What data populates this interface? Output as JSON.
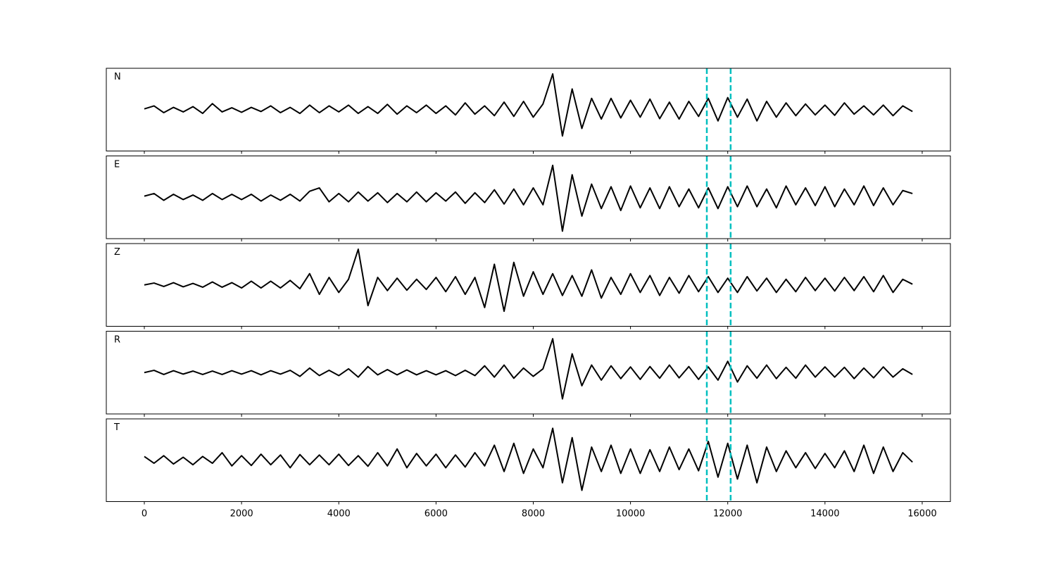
{
  "chart_data": {
    "type": "line",
    "x": [
      0,
      200,
      400,
      600,
      800,
      1000,
      1200,
      1400,
      1600,
      1800,
      2000,
      2200,
      2400,
      2600,
      2800,
      3000,
      3200,
      3400,
      3600,
      3800,
      4000,
      4200,
      4400,
      4600,
      4800,
      5000,
      5200,
      5400,
      5600,
      5800,
      6000,
      6200,
      6400,
      6600,
      6800,
      7000,
      7200,
      7400,
      7600,
      7800,
      8000,
      8200,
      8400,
      8600,
      8800,
      9000,
      9200,
      9400,
      9600,
      9800,
      10000,
      10200,
      10400,
      10600,
      10800,
      11000,
      11200,
      11400,
      11600,
      11800,
      12000,
      12200,
      12400,
      12600,
      12800,
      13000,
      13200,
      13400,
      13600,
      13800,
      14000,
      14200,
      14400,
      14600,
      14800,
      15000,
      15200,
      15400,
      15600,
      15800
    ],
    "xlim": [
      -782,
      16580
    ],
    "xticks": [
      0,
      2000,
      4000,
      6000,
      8000,
      10000,
      12000,
      14000,
      16000
    ],
    "ylim": [
      -1.1,
      1.1
    ],
    "color": "#000000",
    "markers": {
      "values": [
        11570,
        12060
      ],
      "color": "#00bfbf",
      "style": "dashed"
    },
    "series": [
      {
        "name": "N",
        "values": [
          0.02,
          0.1,
          -0.08,
          0.06,
          -0.06,
          0.08,
          -0.1,
          0.16,
          -0.06,
          0.05,
          -0.07,
          0.06,
          -0.05,
          0.1,
          -0.08,
          0.06,
          -0.1,
          0.12,
          -0.08,
          0.1,
          -0.06,
          0.12,
          -0.1,
          0.08,
          -0.1,
          0.14,
          -0.12,
          0.1,
          -0.08,
          0.12,
          -0.1,
          0.1,
          -0.14,
          0.18,
          -0.12,
          0.1,
          -0.16,
          0.2,
          -0.18,
          0.22,
          -0.2,
          0.15,
          0.95,
          -0.7,
          0.55,
          -0.5,
          0.3,
          -0.25,
          0.3,
          -0.22,
          0.25,
          -0.2,
          0.28,
          -0.24,
          0.2,
          -0.25,
          0.22,
          -0.18,
          0.3,
          -0.3,
          0.32,
          -0.2,
          0.28,
          -0.3,
          0.22,
          -0.2,
          0.18,
          -0.16,
          0.15,
          -0.14,
          0.12,
          -0.15,
          0.18,
          -0.12,
          0.1,
          -0.14,
          0.12,
          -0.16,
          0.1,
          -0.05
        ]
      },
      {
        "name": "E",
        "values": [
          0.03,
          0.1,
          -0.08,
          0.08,
          -0.06,
          0.06,
          -0.08,
          0.1,
          -0.06,
          0.08,
          -0.06,
          0.08,
          -0.1,
          0.06,
          -0.08,
          0.08,
          -0.1,
          0.16,
          0.25,
          -0.12,
          0.1,
          -0.12,
          0.14,
          -0.1,
          0.12,
          -0.14,
          0.1,
          -0.12,
          0.14,
          -0.12,
          0.12,
          -0.1,
          0.14,
          -0.16,
          0.12,
          -0.14,
          0.2,
          -0.18,
          0.22,
          -0.2,
          0.25,
          -0.2,
          0.85,
          -0.9,
          0.6,
          -0.5,
          0.35,
          -0.3,
          0.28,
          -0.35,
          0.3,
          -0.28,
          0.25,
          -0.3,
          0.28,
          -0.25,
          0.22,
          -0.28,
          0.25,
          -0.3,
          0.28,
          -0.25,
          0.3,
          -0.25,
          0.22,
          -0.28,
          0.3,
          -0.2,
          0.25,
          -0.22,
          0.28,
          -0.25,
          0.22,
          -0.2,
          0.3,
          -0.22,
          0.25,
          -0.2,
          0.18,
          0.1
        ]
      },
      {
        "name": "Z",
        "values": [
          0.0,
          0.05,
          -0.04,
          0.06,
          -0.05,
          0.04,
          -0.06,
          0.08,
          -0.06,
          0.06,
          -0.08,
          0.1,
          -0.08,
          0.1,
          -0.08,
          0.12,
          -0.1,
          0.3,
          -0.25,
          0.2,
          -0.2,
          0.15,
          0.95,
          -0.55,
          0.2,
          -0.15,
          0.18,
          -0.14,
          0.15,
          -0.12,
          0.2,
          -0.18,
          0.22,
          -0.25,
          0.2,
          -0.6,
          0.55,
          -0.7,
          0.6,
          -0.3,
          0.35,
          -0.25,
          0.3,
          -0.28,
          0.25,
          -0.3,
          0.4,
          -0.35,
          0.2,
          -0.25,
          0.3,
          -0.2,
          0.25,
          -0.28,
          0.2,
          -0.22,
          0.25,
          -0.18,
          0.22,
          -0.2,
          0.18,
          -0.2,
          0.22,
          -0.16,
          0.18,
          -0.2,
          0.15,
          -0.18,
          0.2,
          -0.15,
          0.18,
          -0.16,
          0.2,
          -0.15,
          0.22,
          -0.18,
          0.25,
          -0.2,
          0.15,
          0.02
        ]
      },
      {
        "name": "R",
        "values": [
          0.0,
          0.06,
          -0.05,
          0.05,
          -0.04,
          0.04,
          -0.05,
          0.04,
          -0.05,
          0.05,
          -0.04,
          0.05,
          -0.06,
          0.05,
          -0.04,
          0.06,
          -0.1,
          0.12,
          -0.08,
          0.06,
          -0.08,
          0.1,
          -0.12,
          0.16,
          -0.06,
          0.08,
          -0.06,
          0.07,
          -0.06,
          0.05,
          -0.06,
          0.05,
          -0.08,
          0.06,
          -0.08,
          0.18,
          -0.12,
          0.2,
          -0.15,
          0.12,
          -0.1,
          0.1,
          0.9,
          -0.7,
          0.5,
          -0.35,
          0.2,
          -0.2,
          0.18,
          -0.16,
          0.15,
          -0.18,
          0.16,
          -0.15,
          0.2,
          -0.14,
          0.16,
          -0.18,
          0.15,
          -0.2,
          0.3,
          -0.25,
          0.18,
          -0.15,
          0.2,
          -0.16,
          0.14,
          -0.15,
          0.2,
          -0.12,
          0.15,
          -0.12,
          0.14,
          -0.16,
          0.12,
          -0.14,
          0.15,
          -0.12,
          0.1,
          -0.05
        ]
      },
      {
        "name": "T",
        "values": [
          0.1,
          -0.08,
          0.12,
          -0.1,
          0.08,
          -0.12,
          0.1,
          -0.08,
          0.2,
          -0.15,
          0.12,
          -0.14,
          0.16,
          -0.12,
          0.14,
          -0.2,
          0.15,
          -0.12,
          0.14,
          -0.12,
          0.16,
          -0.14,
          0.12,
          -0.16,
          0.2,
          -0.15,
          0.3,
          -0.2,
          0.18,
          -0.15,
          0.16,
          -0.2,
          0.14,
          -0.18,
          0.2,
          -0.15,
          0.4,
          -0.3,
          0.45,
          -0.35,
          0.3,
          -0.2,
          0.85,
          -0.6,
          0.6,
          -0.8,
          0.35,
          -0.3,
          0.4,
          -0.35,
          0.3,
          -0.35,
          0.28,
          -0.3,
          0.35,
          -0.25,
          0.3,
          -0.28,
          0.5,
          -0.45,
          0.45,
          -0.5,
          0.4,
          -0.6,
          0.35,
          -0.3,
          0.25,
          -0.2,
          0.2,
          -0.22,
          0.18,
          -0.2,
          0.25,
          -0.3,
          0.4,
          -0.35,
          0.35,
          -0.3,
          0.2,
          -0.05
        ]
      }
    ]
  }
}
